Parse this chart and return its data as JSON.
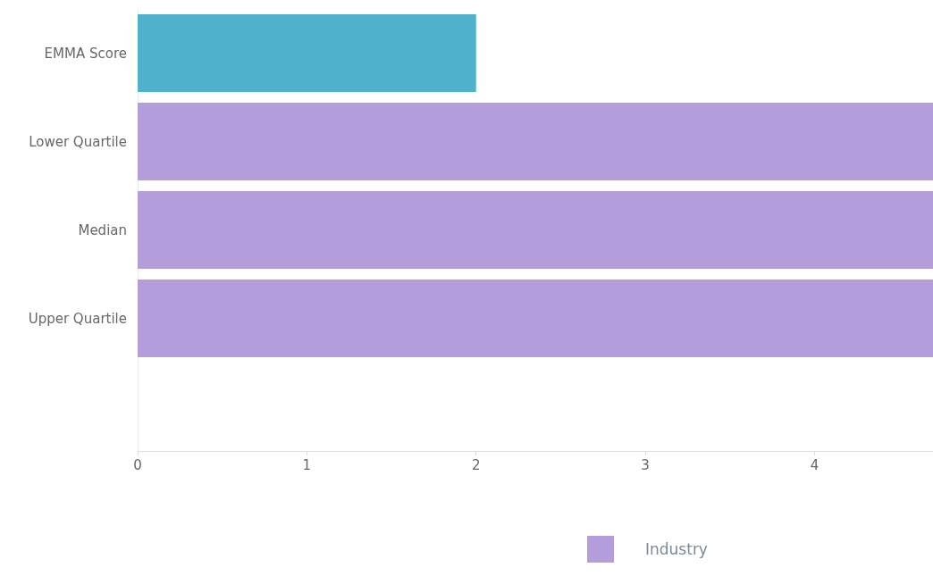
{
  "chart_data": {
    "type": "bar",
    "orientation": "horizontal",
    "categories": [
      "EMMA Score",
      "Lower Quartile",
      "Median",
      "Upper Quartile",
      null
    ],
    "series": [
      {
        "color": "#4fb1cb",
        "values": [
          2.0,
          null,
          null,
          null,
          null
        ]
      },
      {
        "name": "Industry",
        "color": "#b39ddb",
        "values": [
          null,
          4.7,
          4.7,
          4.7,
          null
        ]
      }
    ],
    "xlim": [
      0,
      4.7
    ],
    "xticks": [
      0,
      1,
      2,
      3,
      4
    ],
    "grid": false,
    "legend": "bottom"
  }
}
